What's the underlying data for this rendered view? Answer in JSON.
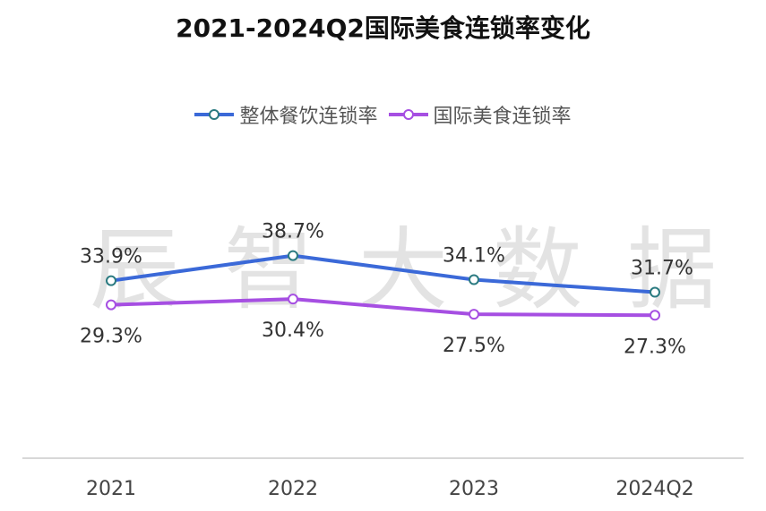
{
  "watermark": "辰智大数据",
  "chart_data": {
    "type": "line",
    "title": "2021-2024Q2国际美食连锁率变化",
    "categories": [
      "2021",
      "2022",
      "2023",
      "2024Q2"
    ],
    "series": [
      {
        "name": "整体餐饮连锁率",
        "values": [
          33.9,
          38.7,
          34.1,
          31.7
        ],
        "labels": [
          "33.9%",
          "38.7%",
          "34.1%",
          "31.7%"
        ],
        "color": "#3b69d8",
        "marker": "#2a7a80"
      },
      {
        "name": "国际美食连锁率",
        "values": [
          29.3,
          30.4,
          27.5,
          27.3
        ],
        "labels": [
          "29.3%",
          "30.4%",
          "27.5%",
          "27.3%"
        ],
        "color": "#a64fe2",
        "marker": "#a64fe2"
      }
    ],
    "ylim": [
      0,
      60
    ],
    "legend": "top-center",
    "grid": false
  }
}
